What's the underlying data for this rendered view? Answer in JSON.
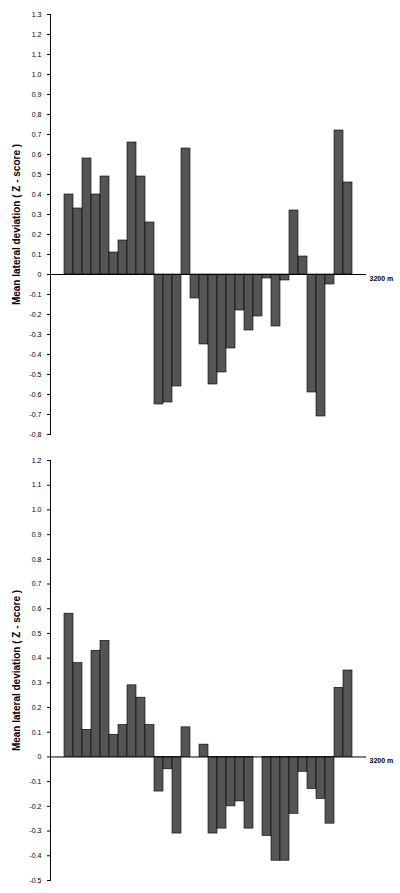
{
  "chart_data": [
    {
      "type": "bar",
      "y_label": "Mean lateral deviation ( Z - score )",
      "x_label": "3200 m",
      "categories": [
        null,
        null,
        null,
        null,
        null,
        null,
        null,
        null,
        null,
        null,
        null,
        null,
        null,
        null,
        null,
        null,
        null,
        null,
        null,
        null,
        null,
        null,
        null,
        null,
        null,
        null,
        null,
        null,
        null,
        null,
        null,
        null
      ],
      "values": [
        0.4,
        0.33,
        0.58,
        0.4,
        0.49,
        0.11,
        0.17,
        0.66,
        0.49,
        0.26,
        -0.65,
        -0.64,
        -0.56,
        0.63,
        -0.12,
        -0.35,
        -0.55,
        -0.49,
        -0.37,
        -0.18,
        -0.28,
        -0.21,
        -0.02,
        -0.26,
        -0.03,
        0.32,
        0.09,
        -0.59,
        -0.71,
        -0.05,
        0.72,
        0.46
      ],
      "color": "#555555",
      "ylim": [
        -0.8,
        1.3
      ],
      "yticks": [
        -0.8,
        -0.7,
        -0.6,
        -0.5,
        -0.4,
        -0.3,
        -0.2,
        -0.1,
        0,
        0.1,
        0.2,
        0.3,
        0.4,
        0.5,
        0.6,
        0.7,
        0.8,
        0.9,
        {
          "value": 1,
          "label": "1.0"
        },
        1.1,
        1.2,
        1.3
      ]
    },
    {
      "type": "bar",
      "y_label": "Mean lateral deviation ( Z - score )",
      "x_label": "3200 m",
      "categories": [
        null,
        null,
        null,
        null,
        null,
        null,
        null,
        null,
        null,
        null,
        null,
        null,
        null,
        null,
        null,
        null,
        null,
        null,
        null,
        null,
        null,
        null,
        null,
        null,
        null,
        null,
        null,
        null,
        null,
        null,
        null,
        null
      ],
      "values": [
        0.58,
        0.38,
        0.11,
        0.43,
        0.47,
        0.09,
        0.13,
        0.29,
        0.24,
        0.13,
        -0.14,
        -0.05,
        -0.31,
        0.12,
        0,
        0.05,
        -0.31,
        -0.29,
        -0.2,
        -0.18,
        -0.29,
        0,
        -0.32,
        -0.42,
        -0.42,
        -0.23,
        -0.06,
        -0.13,
        -0.17,
        -0.27,
        0.28,
        0.35
      ],
      "color": "#555555",
      "ylim": [
        -0.5,
        1.2
      ],
      "yticks": [
        -0.5,
        -0.4,
        -0.3,
        -0.2,
        -0.1,
        0,
        0.1,
        0.2,
        0.3,
        0.4,
        0.5,
        0.6,
        0.7,
        0.8,
        0.9,
        {
          "value": 1,
          "label": "1.0"
        },
        1.1,
        1.2
      ]
    }
  ]
}
